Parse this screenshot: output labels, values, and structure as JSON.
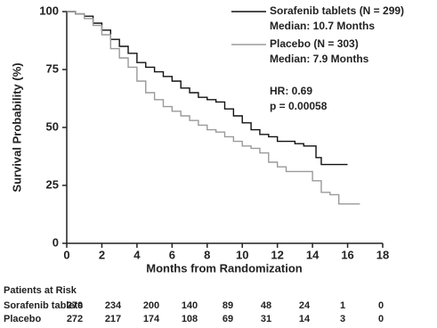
{
  "chart_data": {
    "type": "step",
    "xlabel": "Months from Randomization",
    "ylabel": "Survival Probability (%)",
    "xlim": [
      0,
      18
    ],
    "xticks": [
      0,
      2,
      4,
      6,
      8,
      10,
      12,
      14,
      16,
      18
    ],
    "ylim": [
      0,
      100
    ],
    "yticks": [
      0,
      25,
      50,
      75,
      100
    ],
    "series": [
      {
        "name": "Sorafenib tablets (N = 299)",
        "median_label": "Median: 10.7 Months",
        "color": "#111111",
        "x": [
          0,
          0.5,
          1,
          1.5,
          2,
          2.5,
          3,
          3.5,
          4,
          4.5,
          5,
          5.5,
          6,
          6.5,
          7,
          7.5,
          8,
          8.5,
          9,
          9.5,
          10,
          10.5,
          11,
          11.5,
          12,
          12.5,
          13,
          13.5,
          14,
          14.2,
          14.5,
          15,
          16
        ],
        "values": [
          100,
          99,
          98,
          95,
          92,
          88,
          85,
          82,
          78,
          76,
          74,
          72,
          70,
          67,
          65,
          63,
          62,
          61,
          58,
          55,
          52,
          49,
          47,
          46,
          44,
          44,
          43,
          42,
          42,
          37,
          34,
          34,
          34
        ]
      },
      {
        "name": "Placebo (N = 303)",
        "median_label": "Median: 7.9 Months",
        "color": "#9a9a9a",
        "x": [
          0,
          0.5,
          1,
          1.5,
          2,
          2.5,
          3,
          3.5,
          4,
          4.5,
          5,
          5.5,
          6,
          6.5,
          7,
          7.5,
          8,
          8.5,
          9,
          9.5,
          10,
          10.5,
          11,
          11.5,
          12,
          12.5,
          13,
          13.5,
          14,
          14.5,
          15,
          15.5,
          16,
          16.7
        ],
        "values": [
          100,
          99,
          97,
          94,
          90,
          84,
          80,
          76,
          70,
          65,
          62,
          59,
          57,
          55,
          53,
          51,
          49,
          48,
          46,
          44,
          42,
          41,
          39,
          35,
          33,
          31,
          31,
          31,
          27,
          22,
          21,
          17,
          17,
          17
        ]
      }
    ],
    "annotations": [
      "HR: 0.69",
      "p = 0.00058"
    ]
  },
  "risk_table": {
    "title": "Patients at Risk",
    "rows": [
      {
        "label": "Sorafenib tablets",
        "counts": [
          270,
          234,
          200,
          140,
          89,
          48,
          24,
          1,
          0
        ]
      },
      {
        "label": "Placebo",
        "counts": [
          272,
          217,
          174,
          108,
          69,
          31,
          14,
          3,
          0
        ]
      }
    ]
  }
}
